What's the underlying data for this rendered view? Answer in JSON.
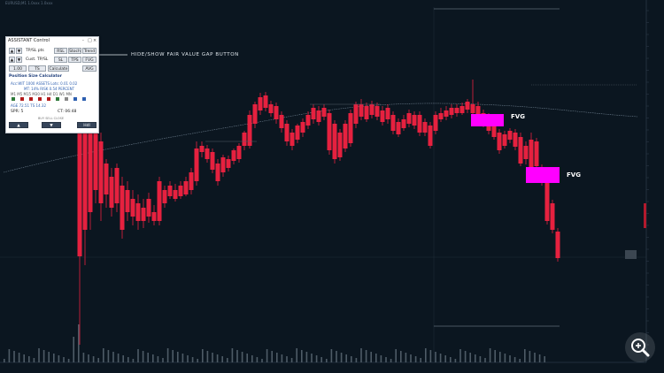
{
  "symbol_line": "EURUSD,M1 1.0xxx 1.0xxx",
  "callout": "HIDE/SHOW FAIR VALUE GAP BUTTON",
  "fvg_labels": [
    "FVG",
    "FVG"
  ],
  "panel": {
    "title": "ASSISTANT Control",
    "window_icons": [
      "-",
      "□",
      "×"
    ],
    "row1_value": "TP/SL pts",
    "row2_value": "Cust. TP/SL",
    "buttons_right_row1": [
      "RSL",
      "Stoch",
      "Trend"
    ],
    "buttons_right_row2": [
      "SL",
      "TPS",
      "FVG"
    ],
    "row3_left": "1.00",
    "row3_mid": "TS",
    "row3_calc": "Calculate",
    "row3_right": "AVG",
    "section_title": "Position Size Calculator",
    "info_line1": "Acc:WIT 1000 ASSETS  Lots: 0.01 0.02",
    "info_line2": "MT: 14% RISK 0.54 PERCENT",
    "tf_labels": "M1 M5 M15 M30 H1 H4 D1 W1 MN",
    "stat_line": "AGE 72.51   TS 14.32",
    "spread_label": "SPR: 5",
    "time_label": "CT: 06:48",
    "small_text": "BUY SELL CLOSE",
    "bottom_buttons": [
      "▲",
      "▼",
      "Hdl"
    ]
  },
  "colors": {
    "background": "#0b1620",
    "candle_bear": "#e6213f",
    "fvg": "#ff00ff",
    "moving_average": "#6e7f8e",
    "label_yellow": "#e3c04a",
    "panel_bg": "#ffffff"
  },
  "icons": {
    "zoom": "magnifier-plus-icon",
    "up_arrow": "up-triangle-icon",
    "down_arrow": "down-triangle-icon"
  }
}
